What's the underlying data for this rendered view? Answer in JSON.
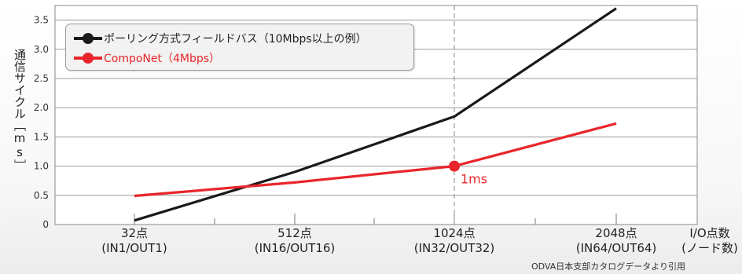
{
  "chart_data": {
    "type": "line",
    "ylabel": "通信サイクル［ms］",
    "xlabel": "I/O点数\n(ノード数)",
    "x_unit_line1": "I/O点数",
    "x_unit_line2": "(ノード数)",
    "categories": [
      {
        "line1": "32点",
        "line2": "(IN1/OUT1)"
      },
      {
        "line1": "512点",
        "line2": "(IN16/OUT16)"
      },
      {
        "line1": "1024点",
        "line2": "(IN32/OUT32)"
      },
      {
        "line1": "2048点",
        "line2": "(IN64/OUT64)"
      }
    ],
    "ylim": [
      0,
      3.75
    ],
    "yticks": [
      "0",
      "0.5",
      "1.0",
      "1.5",
      "2.0",
      "2.5",
      "3.0",
      "3.5"
    ],
    "grid": true,
    "series": [
      {
        "name": "ポーリング方式フィールドバス（10Mbps以上の例）",
        "color": "#1a1a1a",
        "values": [
          0.07,
          0.9,
          1.85,
          3.7
        ]
      },
      {
        "name": "CompoNet（4Mbps）",
        "color": "#e8262b",
        "values": [
          0.49,
          0.72,
          1.0,
          1.73
        ]
      }
    ],
    "annotation": {
      "text": "1ms",
      "series": 1,
      "category": 2,
      "value": 1.0,
      "color": "#e8262b"
    },
    "legend_position": "top-left"
  },
  "source_note": "ODVA日本支部カタログデータより引用"
}
